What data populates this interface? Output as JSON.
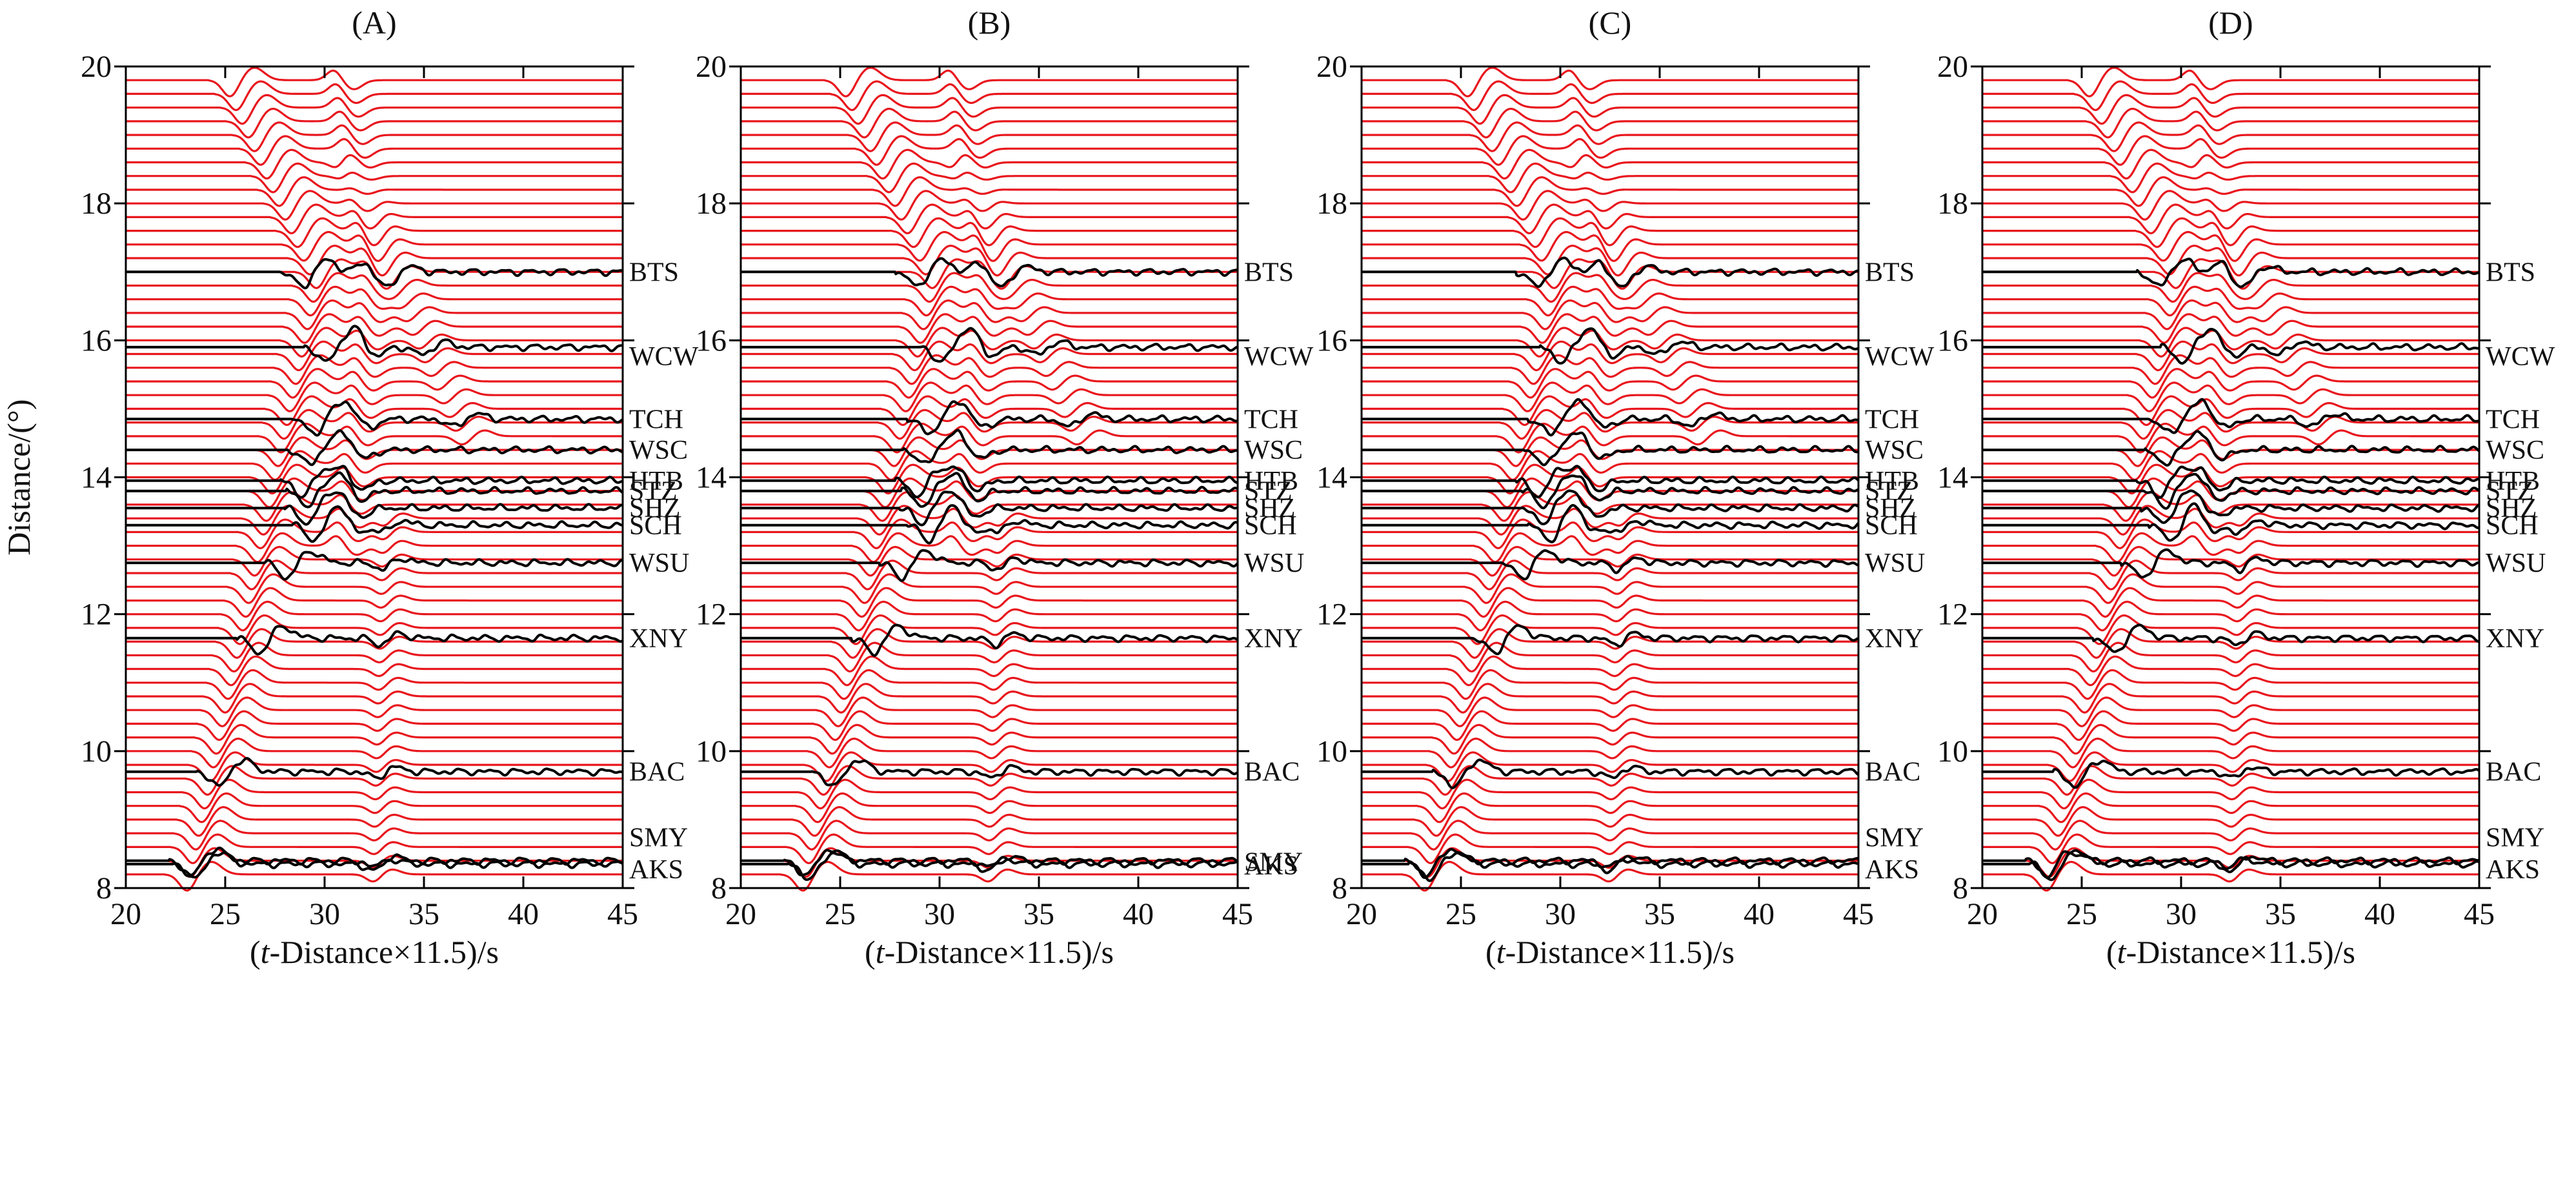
{
  "chart_data": {
    "type": "line",
    "kind": "seismic-record-section",
    "xlabel_parts": [
      "(",
      "t",
      "-Distance×11.5)/s"
    ],
    "ylabel": "Distance/(°)",
    "xlim": [
      20,
      45
    ],
    "ylim": [
      8,
      20
    ],
    "xticks": [
      20,
      25,
      30,
      35,
      40,
      45
    ],
    "yticks": [
      8,
      10,
      12,
      14,
      16,
      18,
      20
    ],
    "synthetic_trace_count": 60,
    "synthetic_spacing_deg": 0.2,
    "synthetic_start_deg": 8.2,
    "series": [
      {
        "name": "synthetic",
        "color": "#e8161d"
      },
      {
        "name": "observed",
        "color": "#000000"
      }
    ],
    "stations": [
      {
        "name": "BTS",
        "distance": 17.0,
        "onset": 28.0
      },
      {
        "name": "WCW",
        "distance": 15.9,
        "onset": 29.2
      },
      {
        "name": "TCH",
        "distance": 14.85,
        "onset": 28.6
      },
      {
        "name": "WSC",
        "distance": 14.4,
        "onset": 28.4
      },
      {
        "name": "HTB",
        "distance": 13.95,
        "onset": 28.0
      },
      {
        "name": "STZ",
        "distance": 13.8,
        "onset": 28.3
      },
      {
        "name": "SHZ",
        "distance": 13.55,
        "onset": 28.2
      },
      {
        "name": "SCH",
        "distance": 13.3,
        "onset": 28.6
      },
      {
        "name": "WSU",
        "distance": 12.75,
        "onset": 27.2
      },
      {
        "name": "XNY",
        "distance": 11.65,
        "onset": 25.8
      },
      {
        "name": "BAC",
        "distance": 9.7,
        "onset": 23.8
      },
      {
        "name": "SMY",
        "distance": 8.4,
        "onset": 22.4
      },
      {
        "name": "AKS",
        "distance": 8.35,
        "onset": 22.6
      }
    ],
    "panels": [
      {
        "title": "(A)",
        "labels_overlap": false
      },
      {
        "title": "(B)",
        "labels_overlap": true
      },
      {
        "title": "(C)",
        "labels_overlap": false
      },
      {
        "title": "(D)",
        "labels_overlap": false
      }
    ]
  }
}
